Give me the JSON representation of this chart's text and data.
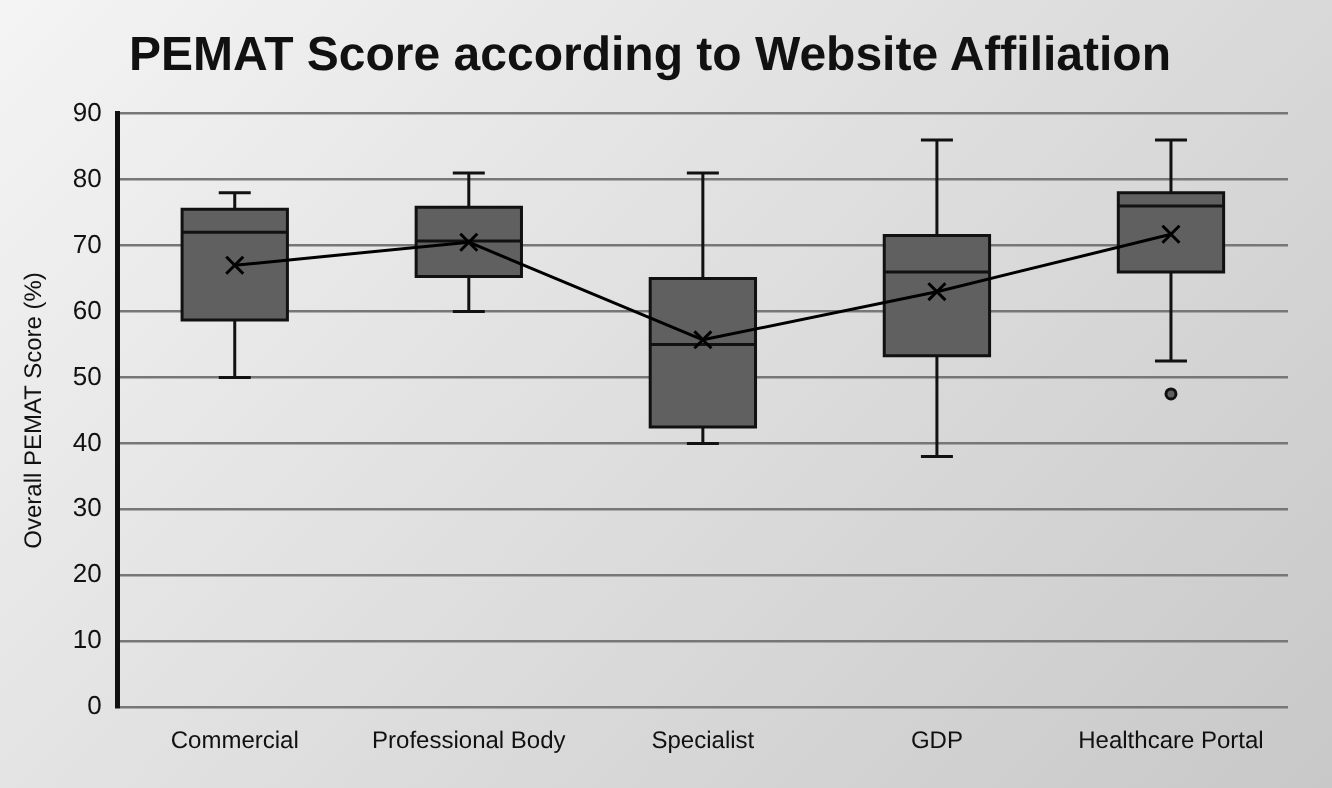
{
  "chart_data": {
    "type": "box",
    "title": "PEMAT Score according to Website Affiliation",
    "ylabel": "Overall PEMAT Score (%)",
    "categories": [
      "Commercial",
      "Professional Body",
      "Specialist",
      "GDP",
      "Healthcare Portal"
    ],
    "series": [
      {
        "type": "box",
        "color": "#606060",
        "boxes": [
          {
            "low": 50,
            "q1": 58.7,
            "median": 72,
            "q3": 75.5,
            "high": 78
          },
          {
            "low": 60,
            "q1": 65.3,
            "median": 70.7,
            "q3": 75.8,
            "high": 81
          },
          {
            "low": 40,
            "q1": 42.5,
            "median": 55,
            "q3": 65,
            "high": 81
          },
          {
            "low": 38,
            "q1": 53.3,
            "median": 66,
            "q3": 71.5,
            "high": 86
          },
          {
            "low": 52.5,
            "q1": 66,
            "median": 76,
            "q3": 78,
            "high": 86,
            "outliers": [
              47.5
            ]
          }
        ]
      },
      {
        "type": "line",
        "color": "#000000",
        "values": [
          67,
          70.5,
          55.7,
          63,
          71.7
        ]
      }
    ],
    "marker": "cross",
    "ylim": [
      0,
      90
    ],
    "yticks": [
      0,
      10,
      20,
      30,
      40,
      50,
      60,
      70,
      80,
      90
    ],
    "grid": "y"
  }
}
